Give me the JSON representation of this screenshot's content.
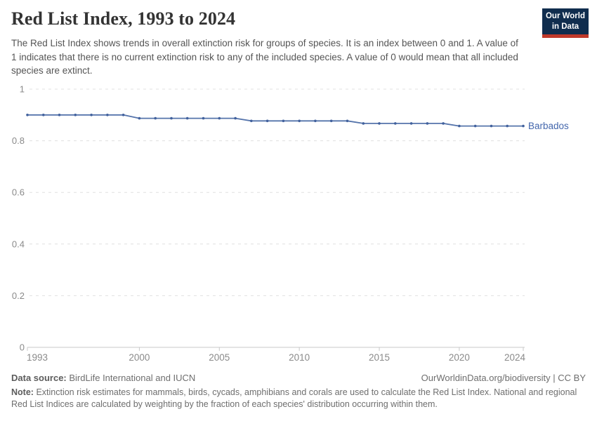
{
  "header": {
    "title": "Red List Index, 1993 to 2024",
    "subtitle": "The Red List Index shows trends in overall extinction risk for groups of species. It is an index between 0 and 1. A value of 1 indicates that there is no current extinction risk to any of the included species. A value of 0 would mean that all included species are extinct.",
    "logo": {
      "line1": "Our World",
      "line2": "in Data",
      "bg_color": "#102d4e",
      "accent_color": "#c0392b"
    }
  },
  "chart_data": {
    "type": "line",
    "title": "Red List Index, 1993 to 2024",
    "xlabel": "",
    "ylabel": "",
    "xlim": [
      1993,
      2024
    ],
    "ylim": [
      0,
      1
    ],
    "xticks": [
      1993,
      2000,
      2005,
      2010,
      2015,
      2020,
      2024
    ],
    "yticks": [
      0,
      0.2,
      0.4,
      0.6,
      0.8,
      1
    ],
    "grid": "horizontal-dashed",
    "legend": "end-of-line-label",
    "x": [
      1993,
      1994,
      1995,
      1996,
      1997,
      1998,
      1999,
      2000,
      2001,
      2002,
      2003,
      2004,
      2005,
      2006,
      2007,
      2008,
      2009,
      2010,
      2011,
      2012,
      2013,
      2014,
      2015,
      2016,
      2017,
      2018,
      2019,
      2020,
      2021,
      2022,
      2023,
      2024
    ],
    "series": [
      {
        "name": "Barbados",
        "line_color": "#5574ab",
        "point_color": "#41619d",
        "label_color": "#4366ac",
        "values": [
          0.9,
          0.9,
          0.9,
          0.9,
          0.9,
          0.9,
          0.9,
          0.887,
          0.887,
          0.887,
          0.887,
          0.887,
          0.887,
          0.887,
          0.877,
          0.877,
          0.877,
          0.877,
          0.877,
          0.877,
          0.877,
          0.867,
          0.867,
          0.867,
          0.867,
          0.867,
          0.867,
          0.857,
          0.857,
          0.857,
          0.857,
          0.857
        ]
      }
    ],
    "axis_colors": {
      "gridline": "#e0e0e0",
      "axis_line": "#c9c9c9",
      "tick_label": "#8a8a8a"
    }
  },
  "footer": {
    "data_source_label": "Data source:",
    "data_source_text": "BirdLife International and IUCN",
    "link": "OurWorldinData.org/biodiversity | CC BY",
    "note_label": "Note:",
    "note_text": "Extinction risk estimates for mammals, birds, cycads, amphibians and corals are used to calculate the Red List Index. National and regional Red List Indices are calculated by weighting by the fraction of each species' distribution occurring within them."
  }
}
